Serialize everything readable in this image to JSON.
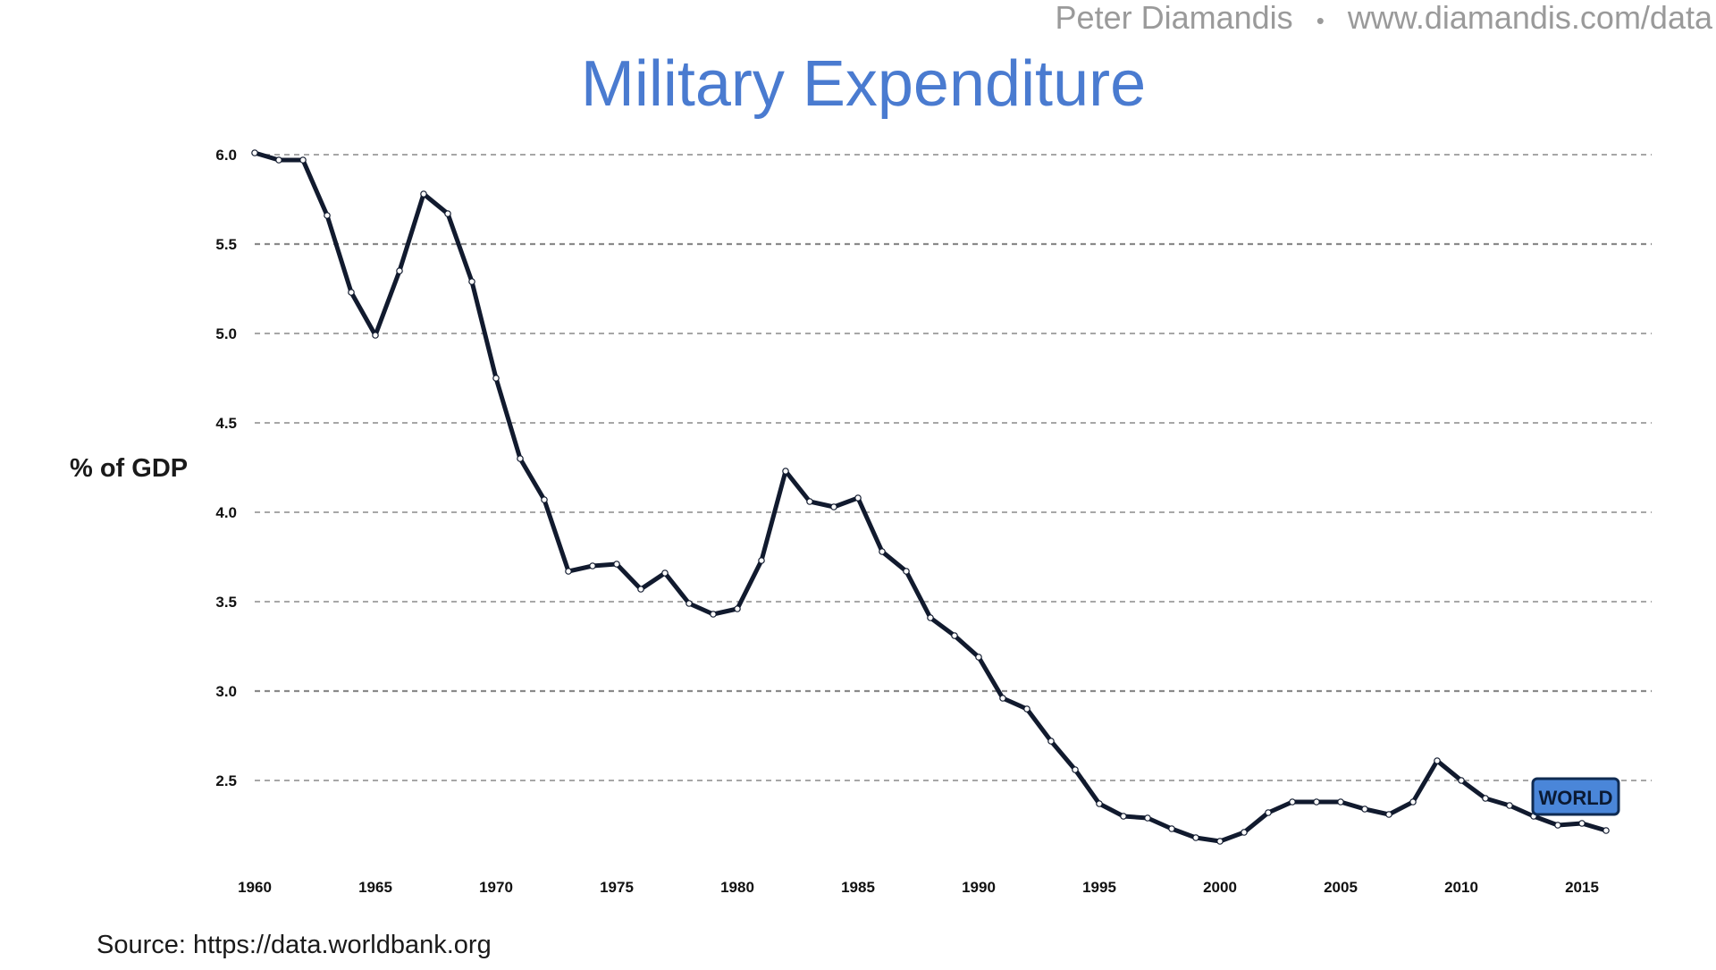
{
  "header": {
    "author": "Peter Diamandis",
    "separator": "•",
    "url": "www.diamandis.com/data"
  },
  "footer": {
    "source": "Source: https://data.worldbank.org"
  },
  "colors": {
    "title": "#4a7bd0",
    "header_text": "#9a9a9a",
    "line": "#111a2e",
    "grid": "#8a8a8a",
    "label_fill": "#4a86d9",
    "label_stroke": "#0f2b52"
  },
  "chart_data": {
    "type": "line",
    "title": "Military Expenditure",
    "xlabel": "",
    "ylabel": "% of GDP",
    "xlim": [
      1960,
      2017.5
    ],
    "ylim": [
      2.05,
      6.0
    ],
    "yticks": [
      6.0,
      5.5,
      5.0,
      4.5,
      4.0,
      3.5,
      3.0,
      2.5
    ],
    "xticks": [
      1960,
      1965,
      1970,
      1975,
      1980,
      1985,
      1990,
      1995,
      2000,
      2005,
      2010,
      2015
    ],
    "grid": true,
    "series": [
      {
        "name": "WORLD",
        "x": [
          1960,
          1961,
          1962,
          1963,
          1964,
          1965,
          1966,
          1967,
          1968,
          1969,
          1970,
          1971,
          1972,
          1973,
          1974,
          1975,
          1976,
          1977,
          1978,
          1979,
          1980,
          1981,
          1982,
          1983,
          1984,
          1985,
          1986,
          1987,
          1988,
          1989,
          1990,
          1991,
          1992,
          1993,
          1994,
          1995,
          1996,
          1997,
          1998,
          1999,
          2000,
          2001,
          2002,
          2003,
          2004,
          2005,
          2006,
          2007,
          2008,
          2009,
          2010,
          2011,
          2012,
          2013,
          2014,
          2015,
          2016
        ],
        "values": [
          6.01,
          5.97,
          5.97,
          5.66,
          5.23,
          4.99,
          5.35,
          5.78,
          5.67,
          5.29,
          4.75,
          4.3,
          4.07,
          3.67,
          3.7,
          3.71,
          3.57,
          3.66,
          3.49,
          3.43,
          3.46,
          3.73,
          4.23,
          4.06,
          4.03,
          4.08,
          3.78,
          3.67,
          3.41,
          3.31,
          3.19,
          2.96,
          2.9,
          2.72,
          2.56,
          2.37,
          2.3,
          2.29,
          2.23,
          2.18,
          2.16,
          2.21,
          2.32,
          2.38,
          2.38,
          2.38,
          2.34,
          2.31,
          2.38,
          2.61,
          2.5,
          2.4,
          2.36,
          2.3,
          2.25,
          2.26,
          2.22
        ]
      }
    ],
    "series_label": "WORLD"
  }
}
